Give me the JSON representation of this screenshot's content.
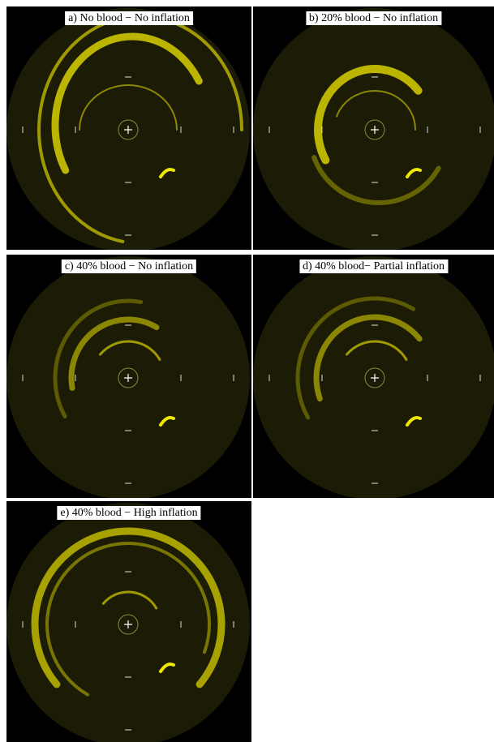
{
  "panels": [
    {
      "label": "a) No blood − No inflation"
    },
    {
      "label": "b) 20% blood − No inflation"
    },
    {
      "label": "c) 40% blood − No inflation"
    },
    {
      "label": "d) 40% blood−  Partial inflation"
    },
    {
      "label": "e) 40% blood − High inflation"
    }
  ]
}
